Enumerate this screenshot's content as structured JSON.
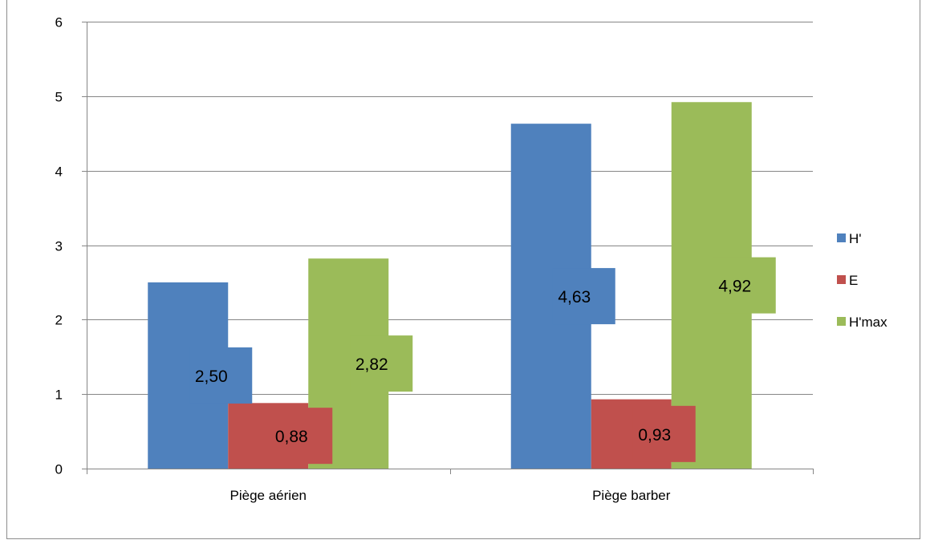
{
  "chart_data": {
    "type": "bar",
    "title": "",
    "xlabel": "",
    "ylabel": "",
    "categories": [
      "Piège aérien",
      "Piège barber"
    ],
    "series": [
      {
        "name": "H'",
        "values": [
          2.5,
          4.63
        ],
        "labels": [
          "2,50",
          "4,63"
        ],
        "color": "#4F81BD"
      },
      {
        "name": "E",
        "values": [
          0.88,
          0.93
        ],
        "labels": [
          "0,88",
          "0,93"
        ],
        "color": "#C0504D"
      },
      {
        "name": "H'max",
        "values": [
          2.82,
          4.92
        ],
        "labels": [
          "2,82",
          "4,92"
        ],
        "color": "#9BBB59"
      }
    ],
    "ylim": [
      0,
      6
    ],
    "yticks": [
      "0",
      "1",
      "2",
      "3",
      "4",
      "5",
      "6"
    ],
    "grid": true,
    "legend_position": "right"
  }
}
